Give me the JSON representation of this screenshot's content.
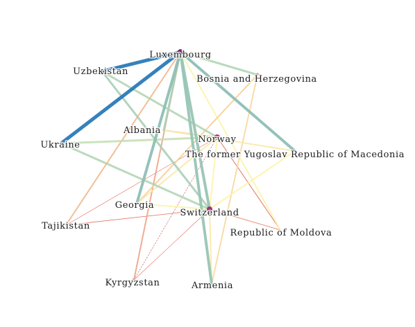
{
  "graph": {
    "nodes": [
      {
        "id": "luxembourg",
        "label": "Luxembourg",
        "marker": "dot",
        "color": "#7b1f6e"
      },
      {
        "id": "uzbekistan",
        "label": "Uzbekistan",
        "marker": "none"
      },
      {
        "id": "bosnia",
        "label": "Bosnia and Herzegovina",
        "marker": "small",
        "color": "#d98b7a"
      },
      {
        "id": "ukraine",
        "label": "Ukraine",
        "marker": "none"
      },
      {
        "id": "albania",
        "label": "Albania",
        "marker": "none"
      },
      {
        "id": "norway",
        "label": "Norway",
        "marker": "dot",
        "color": "#b5397a"
      },
      {
        "id": "macedonia",
        "label": "The former Yugoslav Republic of Macedonia",
        "marker": "none"
      },
      {
        "id": "georgia",
        "label": "Georgia",
        "marker": "small",
        "color": "#c9a38a"
      },
      {
        "id": "switzerland",
        "label": "Switzerland",
        "marker": "dot",
        "color": "#a8307a"
      },
      {
        "id": "tajikistan",
        "label": "Tajikistan",
        "marker": "none"
      },
      {
        "id": "moldova",
        "label": "Republic of Moldova",
        "marker": "none"
      },
      {
        "id": "kyrgyzstan",
        "label": "Kyrgyzstan",
        "marker": "small",
        "color": "#e3a08a"
      },
      {
        "id": "armenia",
        "label": "Armenia",
        "marker": "none"
      }
    ],
    "edges": [
      {
        "source": "luxembourg",
        "target": "uzbekistan",
        "weight": 5,
        "color": "#2b7bb9"
      },
      {
        "source": "luxembourg",
        "target": "ukraine",
        "weight": 5,
        "color": "#2b7bb9"
      },
      {
        "source": "luxembourg",
        "target": "macedonia",
        "weight": 4,
        "color": "#8fbfb7"
      },
      {
        "source": "luxembourg",
        "target": "bosnia",
        "weight": 3,
        "color": "#b3d6b5"
      },
      {
        "source": "luxembourg",
        "target": "georgia",
        "weight": 4,
        "color": "#8fbfb7"
      },
      {
        "source": "luxembourg",
        "target": "switzerland",
        "weight": 4,
        "color": "#98c6b6"
      },
      {
        "source": "luxembourg",
        "target": "armenia",
        "weight": 4,
        "color": "#98c6b6"
      },
      {
        "source": "luxembourg",
        "target": "albania",
        "weight": 3,
        "color": "#a9d0b6"
      },
      {
        "source": "luxembourg",
        "target": "tajikistan",
        "weight": 2,
        "color": "#f1b98a"
      },
      {
        "source": "luxembourg",
        "target": "kyrgyzstan",
        "weight": 2,
        "color": "#eea487"
      },
      {
        "source": "luxembourg",
        "target": "moldova",
        "weight": 2,
        "color": "#fdf3a8"
      },
      {
        "source": "uzbekistan",
        "target": "switzerland",
        "weight": 3,
        "color": "#a9d0b6"
      },
      {
        "source": "uzbekistan",
        "target": "norway",
        "weight": 3,
        "color": "#b3d6b5"
      },
      {
        "source": "ukraine",
        "target": "norway",
        "weight": 3,
        "color": "#c6e0b4"
      },
      {
        "source": "ukraine",
        "target": "switzerland",
        "weight": 3,
        "color": "#b3d6b5"
      },
      {
        "source": "bosnia",
        "target": "georgia",
        "weight": 2,
        "color": "#f6cf95"
      },
      {
        "source": "bosnia",
        "target": "armenia",
        "weight": 2,
        "color": "#f8d99f"
      },
      {
        "source": "albania",
        "target": "norway",
        "weight": 2,
        "color": "#f8d99f"
      },
      {
        "source": "albania",
        "target": "macedonia",
        "weight": 2,
        "color": "#fbe7a6"
      },
      {
        "source": "norway",
        "target": "georgia",
        "weight": 2,
        "color": "#fbe7a6"
      },
      {
        "source": "norway",
        "target": "switzerland",
        "weight": 2,
        "color": "#fdf3a8"
      },
      {
        "source": "norway",
        "target": "moldova",
        "weight": 1,
        "color": "#e0604f"
      },
      {
        "source": "norway",
        "target": "tajikistan",
        "weight": 0.6,
        "color": "#e0604f"
      },
      {
        "source": "norway",
        "target": "kyrgyzstan",
        "weight": 0.6,
        "color": "#c43b3b",
        "dashed": true
      },
      {
        "source": "macedonia",
        "target": "switzerland",
        "weight": 2,
        "color": "#fdf3a8"
      },
      {
        "source": "georgia",
        "target": "switzerland",
        "weight": 2,
        "color": "#fdf3a8"
      },
      {
        "source": "switzerland",
        "target": "tajikistan",
        "weight": 0.8,
        "color": "#e0604f"
      },
      {
        "source": "switzerland",
        "target": "kyrgyzstan",
        "weight": 0.6,
        "color": "#e0604f"
      },
      {
        "source": "switzerland",
        "target": "moldova",
        "weight": 1,
        "color": "#ea7f62"
      },
      {
        "source": "switzerland",
        "target": "armenia",
        "weight": 2,
        "color": "#fbe7a6"
      }
    ]
  }
}
